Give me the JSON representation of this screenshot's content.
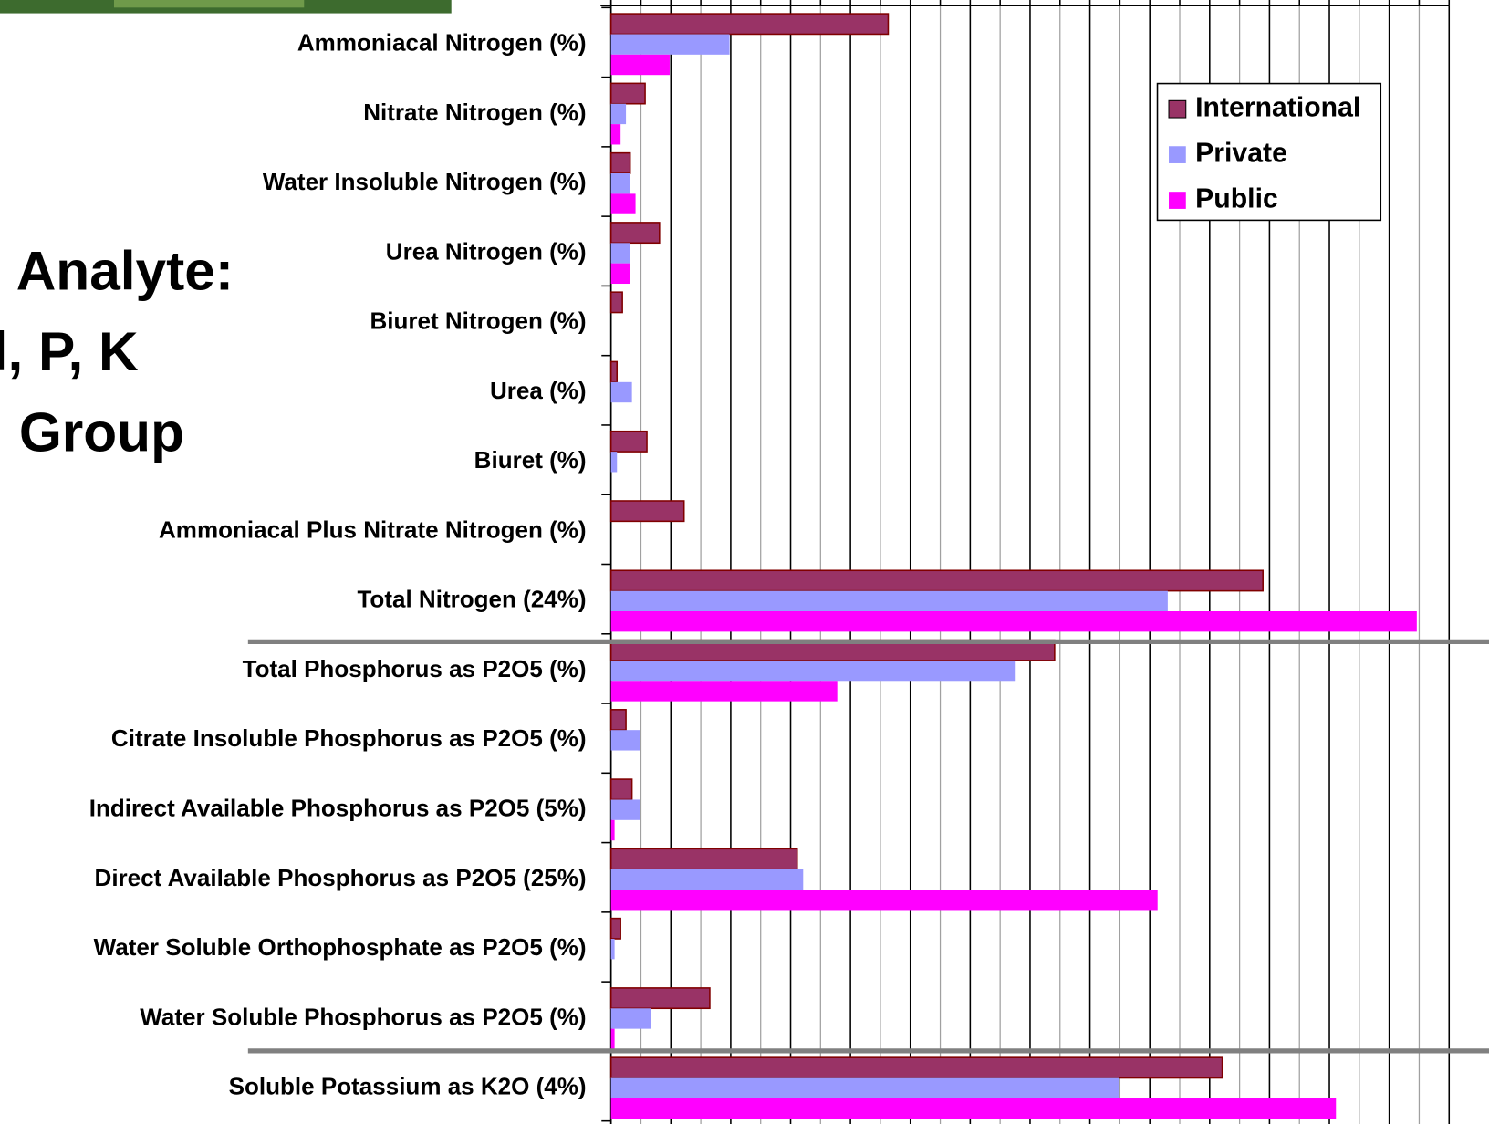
{
  "slide_text": [
    "Analyte:",
    "l, P, K",
    "Group"
  ],
  "chart_data": {
    "type": "hbar",
    "categories": [
      "Ammoniacal Nitrogen (%)",
      "Nitrate Nitrogen (%)",
      "Water Insoluble Nitrogen (%)",
      "Urea Nitrogen (%)",
      "Biuret Nitrogen (%)",
      "Urea (%)",
      "Biuret (%)",
      "Ammoniacal Plus Nitrate Nitrogen (%)",
      "Total Nitrogen (24%)",
      "Total Phosphorus as P2O5 (%)",
      "Citrate Insoluble Phosphorus as P2O5 (%)",
      "Indirect Available Phosphorus as P2O5 (5%)",
      "Direct Available Phosphorus as P2O5 (25%)",
      "Water Soluble Orthophosphate as P2O5 (%)",
      "Water Soluble Phosphorus as P2O5 (%)",
      "Soluble Potassium as K2O (4%)"
    ],
    "series": [
      {
        "name": "International",
        "color": "#993366",
        "values": [
          4.63,
          0.57,
          0.32,
          0.81,
          0.19,
          0.1,
          0.6,
          1.22,
          10.89,
          7.41,
          0.25,
          0.35,
          3.11,
          0.16,
          1.65,
          10.21
        ]
      },
      {
        "name": "Private",
        "color": "#9999ff",
        "values": [
          1.98,
          0.25,
          0.32,
          0.32,
          0,
          0.35,
          0.1,
          0,
          9.3,
          6.76,
          0.49,
          0.49,
          3.21,
          0.06,
          0.67,
          8.49
        ]
      },
      {
        "name": "Public",
        "color": "#ff00ff",
        "values": [
          0.98,
          0.16,
          0.41,
          0.32,
          0,
          0,
          0,
          0,
          13.46,
          3.78,
          0,
          0.06,
          9.13,
          0,
          0.06,
          12.11
        ]
      }
    ],
    "xlim": [
      0,
      14
    ],
    "xticks": [
      0,
      0.5,
      1,
      1.5,
      2,
      2.5,
      3,
      3.5,
      4,
      4.5,
      5,
      5.5,
      6,
      6.5,
      7,
      7.5,
      8,
      8.5,
      9,
      9.5,
      10,
      10.5,
      11,
      11.5,
      12,
      12.5,
      13,
      13.5,
      14
    ],
    "grid": true,
    "legend": "upper right"
  }
}
